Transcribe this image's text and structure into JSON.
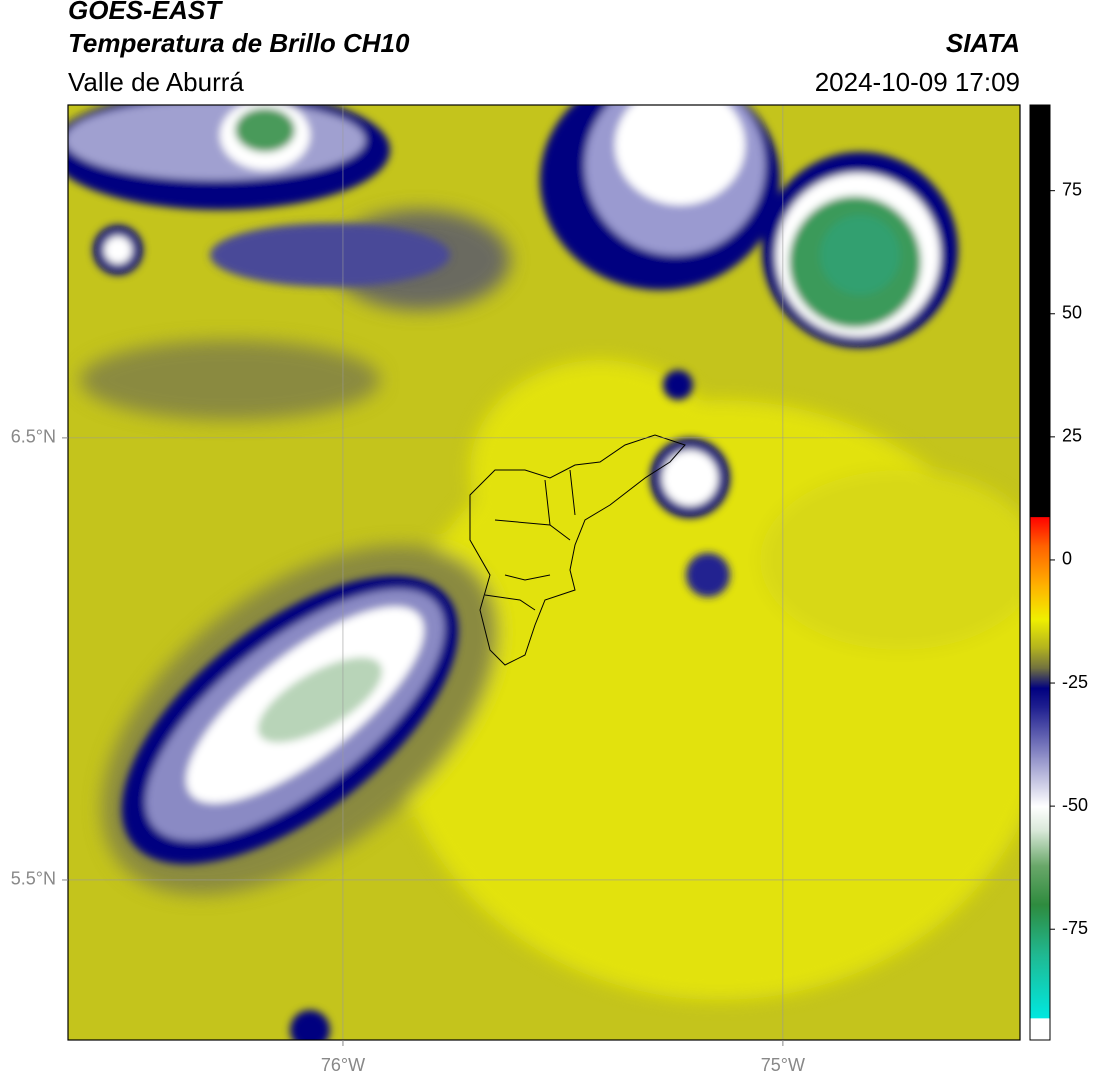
{
  "chart_data": {
    "type": "map",
    "title": "GOES-EAST",
    "subtitle": "Temperatura de Brillo CH10",
    "region": "Valle de Aburrá",
    "source": "SIATA",
    "datetime": "2024-10-09 17:09",
    "xlim": [
      -76.625,
      -74.461
    ],
    "ylim": [
      5.138,
      7.253
    ],
    "xticks": [
      {
        "value": -76,
        "label": "76°W"
      },
      {
        "value": -75,
        "label": "75°W"
      }
    ],
    "yticks": [
      {
        "value": 5.5,
        "label": "5.5°N"
      },
      {
        "value": 6.5,
        "label": "6.5°N"
      }
    ],
    "grid": true,
    "colorbar": {
      "lim": [
        -97.5,
        92.4
      ],
      "ticks": [
        -75,
        -50,
        -25,
        0,
        25,
        50,
        75
      ],
      "stops": [
        {
          "value": -97.5,
          "color": "#ffffff"
        },
        {
          "value": -93,
          "color": "#ffffff"
        },
        {
          "value": -93,
          "color": "#00e8e0"
        },
        {
          "value": -80,
          "color": "#20b890"
        },
        {
          "value": -70,
          "color": "#2e8b3e"
        },
        {
          "value": -62,
          "color": "#6aa86a"
        },
        {
          "value": -55,
          "color": "#d8e8d8"
        },
        {
          "value": -50,
          "color": "#ffffff"
        },
        {
          "value": -40,
          "color": "#9090c8"
        },
        {
          "value": -30,
          "color": "#202090"
        },
        {
          "value": -26,
          "color": "#000080"
        },
        {
          "value": -22,
          "color": "#707040"
        },
        {
          "value": -18,
          "color": "#b0b020"
        },
        {
          "value": -12,
          "color": "#f0f000"
        },
        {
          "value": -5,
          "color": "#ffb000"
        },
        {
          "value": 3,
          "color": "#ff6000"
        },
        {
          "value": 8.8,
          "color": "#ff0000"
        },
        {
          "value": 8.8,
          "color": "#000000"
        },
        {
          "value": 92.4,
          "color": "#000000"
        }
      ]
    }
  }
}
